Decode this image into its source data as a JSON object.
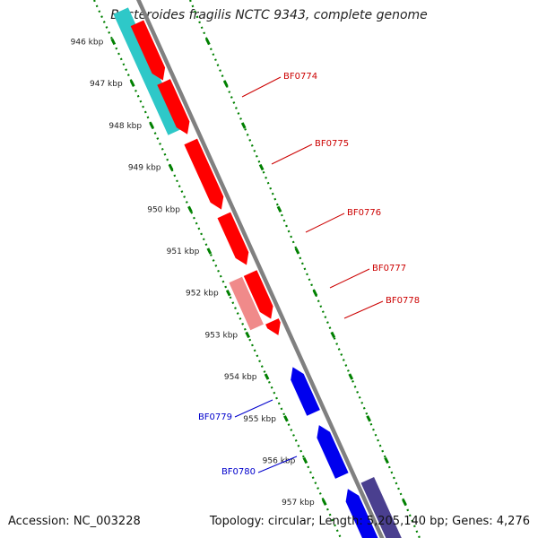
{
  "title": "Bacteroides fragilis NCTC 9343, complete genome",
  "footer": {
    "accession": "Accession: NC_003228",
    "summary": "Topology: circular; Length: 5,205,140 bp; Genes: 4,276"
  },
  "colors": {
    "forward_strand": "#ff0000",
    "forward_strand_light": "#f08a8a",
    "reverse_strand": "#0000ee",
    "reverse_strand_dark": "#4a3f8f",
    "other_feature": "#2ec8c8",
    "backbone": "#808080",
    "tick_marks": "#008000",
    "forward_label": "#cc0000",
    "reverse_label": "#0000cc"
  },
  "ticks": [
    {
      "label": "946 kbp"
    },
    {
      "label": "947 kbp"
    },
    {
      "label": "948 kbp"
    },
    {
      "label": "949 kbp"
    },
    {
      "label": "950 kbp"
    },
    {
      "label": "951 kbp"
    },
    {
      "label": "952 kbp"
    },
    {
      "label": "953 kbp"
    },
    {
      "label": "954 kbp"
    },
    {
      "label": "955 kbp"
    },
    {
      "label": "956 kbp"
    },
    {
      "label": "957 kbp"
    }
  ],
  "genes": [
    {
      "name": "BF0774",
      "strand": "forward"
    },
    {
      "name": "BF0775",
      "strand": "forward"
    },
    {
      "name": "BF0776",
      "strand": "forward"
    },
    {
      "name": "BF0777",
      "strand": "forward"
    },
    {
      "name": "BF0778",
      "strand": "forward"
    },
    {
      "name": "BF0779",
      "strand": "reverse"
    },
    {
      "name": "BF0780",
      "strand": "reverse"
    }
  ]
}
